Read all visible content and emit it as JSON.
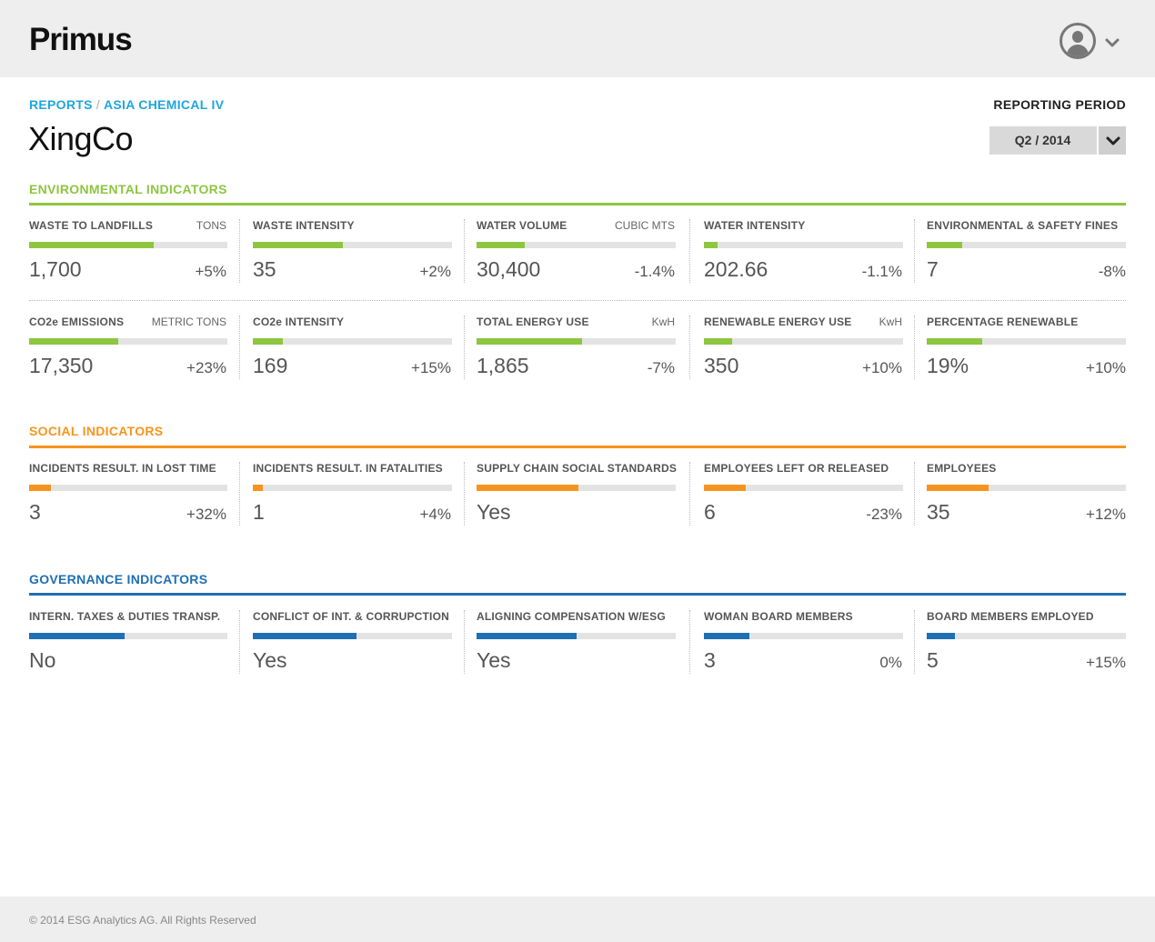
{
  "app": {
    "logo": "Primus"
  },
  "breadcrumb": {
    "reports": "REPORTS",
    "separator": "/",
    "current": "ASIA CHEMICAL IV"
  },
  "page": {
    "title": "XingCo"
  },
  "period": {
    "label": "REPORTING PERIOD",
    "value": "Q2 / 2014"
  },
  "colors": {
    "environmental": "#8dc63f",
    "social": "#f7941d",
    "governance": "#1f6fb5",
    "breadcrumb": "#1fa6dd"
  },
  "sections": [
    {
      "title": "ENVIRONMENTAL INDICATORS",
      "color_key": "environmental",
      "rows": [
        [
          {
            "label": "WASTE TO LANDFILLS",
            "unit": "TONS",
            "value": "1,700",
            "change": "+5%",
            "level": 0.63
          },
          {
            "label": "WASTE INTENSITY",
            "unit": "",
            "value": "35",
            "change": "+2%",
            "level": 0.45
          },
          {
            "label": "WATER VOLUME",
            "unit": "CUBIC MTS",
            "value": "30,400",
            "change": "-1.4%",
            "level": 0.24
          },
          {
            "label": "WATER INTENSITY",
            "unit": "",
            "value": "202.66",
            "change": "-1.1%",
            "level": 0.07
          },
          {
            "label": "ENVIRONMENTAL & SAFETY FINES",
            "unit": "",
            "value": "7",
            "change": "-8%",
            "level": 0.18
          }
        ],
        [
          {
            "label": "CO2e EMISSIONS",
            "unit": "METRIC TONS",
            "value": "17,350",
            "change": "+23%",
            "level": 0.45
          },
          {
            "label": "CO2e INTENSITY",
            "unit": "",
            "value": "169",
            "change": "+15%",
            "level": 0.15
          },
          {
            "label": "TOTAL ENERGY USE",
            "unit": "KwH",
            "value": "1,865",
            "change": "-7%",
            "level": 0.53
          },
          {
            "label": "RENEWABLE ENERGY USE",
            "unit": "KwH",
            "value": "350",
            "change": "+10%",
            "level": 0.14
          },
          {
            "label": "PERCENTAGE RENEWABLE",
            "unit": "",
            "value": "19%",
            "change": "+10%",
            "level": 0.28
          }
        ]
      ]
    },
    {
      "title": "SOCIAL INDICATORS",
      "color_key": "social",
      "rows": [
        [
          {
            "label": "INCIDENTS RESULT. IN LOST TIME",
            "unit": "",
            "value": "3",
            "change": "+32%",
            "level": 0.11
          },
          {
            "label": "INCIDENTS RESULT.  IN FATALITIES",
            "unit": "",
            "value": "1",
            "change": "+4%",
            "level": 0.05
          },
          {
            "label": "SUPPLY CHAIN SOCIAL STANDARDS",
            "unit": "",
            "value": "Yes",
            "change": "",
            "level": 0.51
          },
          {
            "label": "EMPLOYEES LEFT OR RELEASED",
            "unit": "",
            "value": "6",
            "change": "-23%",
            "level": 0.21
          },
          {
            "label": "EMPLOYEES",
            "unit": "",
            "value": "35",
            "change": "+12%",
            "level": 0.31
          }
        ]
      ]
    },
    {
      "title": "GOVERNANCE INDICATORS",
      "color_key": "governance",
      "rows": [
        [
          {
            "label": "INTERN. TAXES & DUTIES TRANSP.",
            "unit": "",
            "value": "No",
            "change": "",
            "level": 0.48
          },
          {
            "label": "CONFLICT OF INT. & CORRUPCTION",
            "unit": "",
            "value": "Yes",
            "change": "",
            "level": 0.52
          },
          {
            "label": "ALIGNING COMPENSATION W/ESG",
            "unit": "",
            "value": "Yes",
            "change": "",
            "level": 0.5
          },
          {
            "label": "WOMAN BOARD MEMBERS",
            "unit": "",
            "value": "3",
            "change": "0%",
            "level": 0.23
          },
          {
            "label": "BOARD MEMBERS EMPLOYED",
            "unit": "",
            "value": "5",
            "change": "+15%",
            "level": 0.14
          }
        ]
      ]
    }
  ],
  "footer": {
    "text": "© 2014 ESG Analytics AG. All Rights Reserved"
  }
}
